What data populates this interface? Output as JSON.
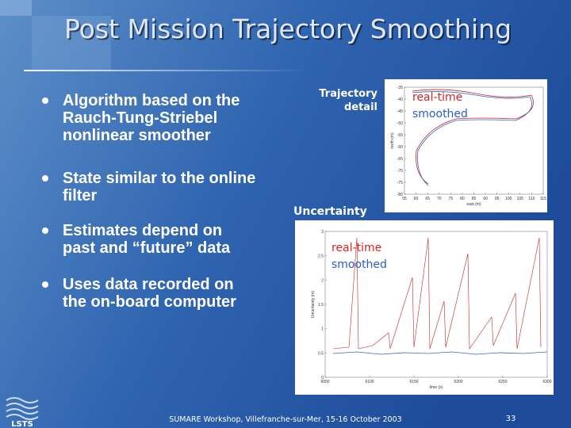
{
  "header": {
    "title": "Post Mission Trajectory Smoothing"
  },
  "bullets": [
    [
      "Algorithm based on the",
      "Rauch-Tung-Striebel",
      "nonlinear smoother"
    ],
    [
      "State similar to the online",
      "filter"
    ],
    [
      "Estimates depend on",
      "past and “future” data"
    ],
    [
      "Uses data recorded on",
      "the on-board computer"
    ]
  ],
  "figures": {
    "trajectory": {
      "label": [
        "Trajectory",
        "detail"
      ],
      "legend": [
        "real-time",
        "smoothed"
      ],
      "x_label": "east (m)",
      "y_label": "north (m)",
      "xlim": [
        55,
        115
      ],
      "xticks": [
        55,
        60,
        65,
        70,
        75,
        80,
        85,
        90,
        95,
        100,
        105,
        110,
        115
      ],
      "ylim": [
        -80,
        -35
      ],
      "yticks": [
        -35,
        -40,
        -45,
        -50,
        -55,
        -60,
        -65,
        -70,
        -75,
        -80
      ]
    },
    "uncertainty": {
      "label": "Uncertainty",
      "legend": [
        "real-time",
        "smoothed"
      ],
      "x_label": "time (s)",
      "y_label": "Uncertainty (m)",
      "xlim": [
        6050,
        6300
      ],
      "xticks": [
        6050,
        6100,
        6150,
        6200,
        6250,
        6300
      ],
      "ylim": [
        0,
        3
      ],
      "yticks": [
        0,
        0.5,
        1,
        1.5,
        2,
        2.5,
        3
      ]
    }
  },
  "footer": {
    "text": "SUMARE Workshop, Villefranche-sur-Mer, 15-16 October 2003",
    "page": "33",
    "logo": "LSTS"
  }
}
